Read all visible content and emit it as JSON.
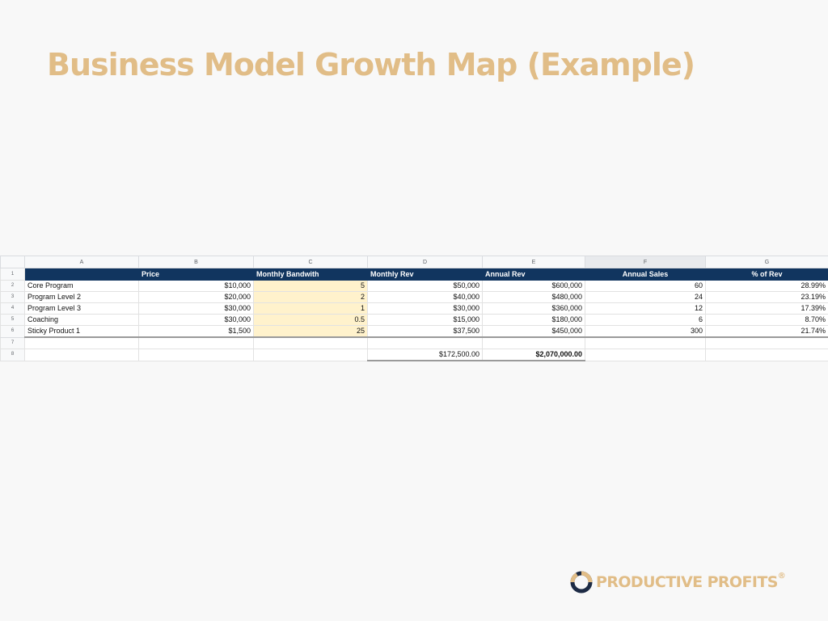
{
  "slide": {
    "title": "Business Model Growth Map (Example)"
  },
  "sheet": {
    "col_letters": [
      "A",
      "B",
      "C",
      "D",
      "E",
      "F",
      "G"
    ],
    "row_numbers": [
      "1",
      "2",
      "3",
      "4",
      "5",
      "6",
      "7",
      "8"
    ],
    "headers": [
      "",
      "Price",
      "Monthly Bandwith",
      "Monthly Rev",
      "Annual Rev",
      "Annual Sales",
      "% of Rev"
    ],
    "rows": [
      [
        "Core Program",
        "$10,000",
        "5",
        "$50,000",
        "$600,000",
        "60",
        "28.99%"
      ],
      [
        "Program Level 2",
        "$20,000",
        "2",
        "$40,000",
        "$480,000",
        "24",
        "23.19%"
      ],
      [
        "Program Level 3",
        "$30,000",
        "1",
        "$30,000",
        "$360,000",
        "12",
        "17.39%"
      ],
      [
        "Coaching",
        "$30,000",
        "0.5",
        "$15,000",
        "$180,000",
        "6",
        "8.70%"
      ],
      [
        "Sticky Product 1",
        "$1,500",
        "25",
        "$37,500",
        "$450,000",
        "300",
        "21.74%"
      ]
    ],
    "totals": {
      "monthly_rev": "$172,500.00",
      "annual_rev": "$2,070,000.00"
    },
    "colors": {
      "header_bg": "#11355f",
      "bandwidth_fill": "#fff2cc"
    }
  },
  "logo": {
    "text": "PRODUCTIVE PROFITS",
    "reg_mark": "®",
    "icon": "ring-logo-icon",
    "colors": {
      "gold": "#e1bd87",
      "navy": "#1d2b45"
    }
  }
}
